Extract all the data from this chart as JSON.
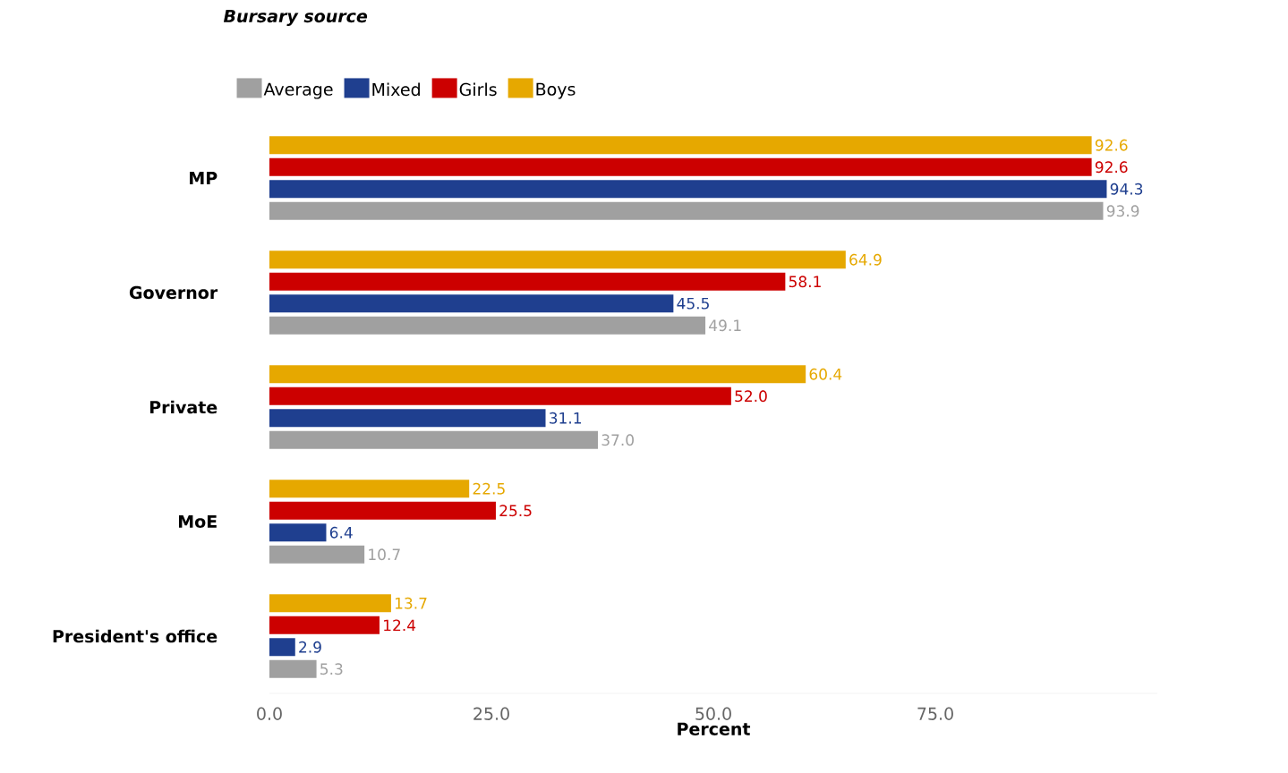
{
  "chart_data": {
    "type": "bar",
    "orientation": "horizontal",
    "legend_title": "Bursary source",
    "xlabel": "Percent",
    "categories": [
      "MP",
      "Governor",
      "Private",
      "MoE",
      "President's office"
    ],
    "series": [
      {
        "name": "Average",
        "color": "#a0a0a0",
        "values": [
          93.9,
          49.1,
          37.0,
          10.7,
          5.3
        ],
        "value_labels": [
          "93.9",
          "49.1",
          "37.0",
          "10.7",
          "5.3"
        ]
      },
      {
        "name": "Mixed",
        "color": "#1f3f8f",
        "values": [
          94.3,
          45.5,
          31.1,
          6.4,
          2.9
        ],
        "value_labels": [
          "94.3",
          "45.5",
          "31.1",
          "6.4",
          "2.9"
        ]
      },
      {
        "name": "Girls",
        "color": "#cc0000",
        "values": [
          92.6,
          58.1,
          52.0,
          25.5,
          12.4
        ],
        "value_labels": [
          "92.6",
          "58.1",
          "52.0",
          "25.5",
          "12.4"
        ]
      },
      {
        "name": "Boys",
        "color": "#e6a800",
        "values": [
          92.6,
          64.9,
          60.4,
          22.5,
          13.7
        ],
        "value_labels": [
          "92.6",
          "64.9",
          "60.4",
          "22.5",
          "13.7"
        ]
      }
    ],
    "xlim": [
      0,
      100
    ],
    "xticks": [
      {
        "value": 0,
        "label": "0.0"
      },
      {
        "value": 25,
        "label": "25.0"
      },
      {
        "value": 50,
        "label": "50.0"
      },
      {
        "value": 75,
        "label": "75.0"
      }
    ],
    "legend": "top",
    "grid": false
  }
}
